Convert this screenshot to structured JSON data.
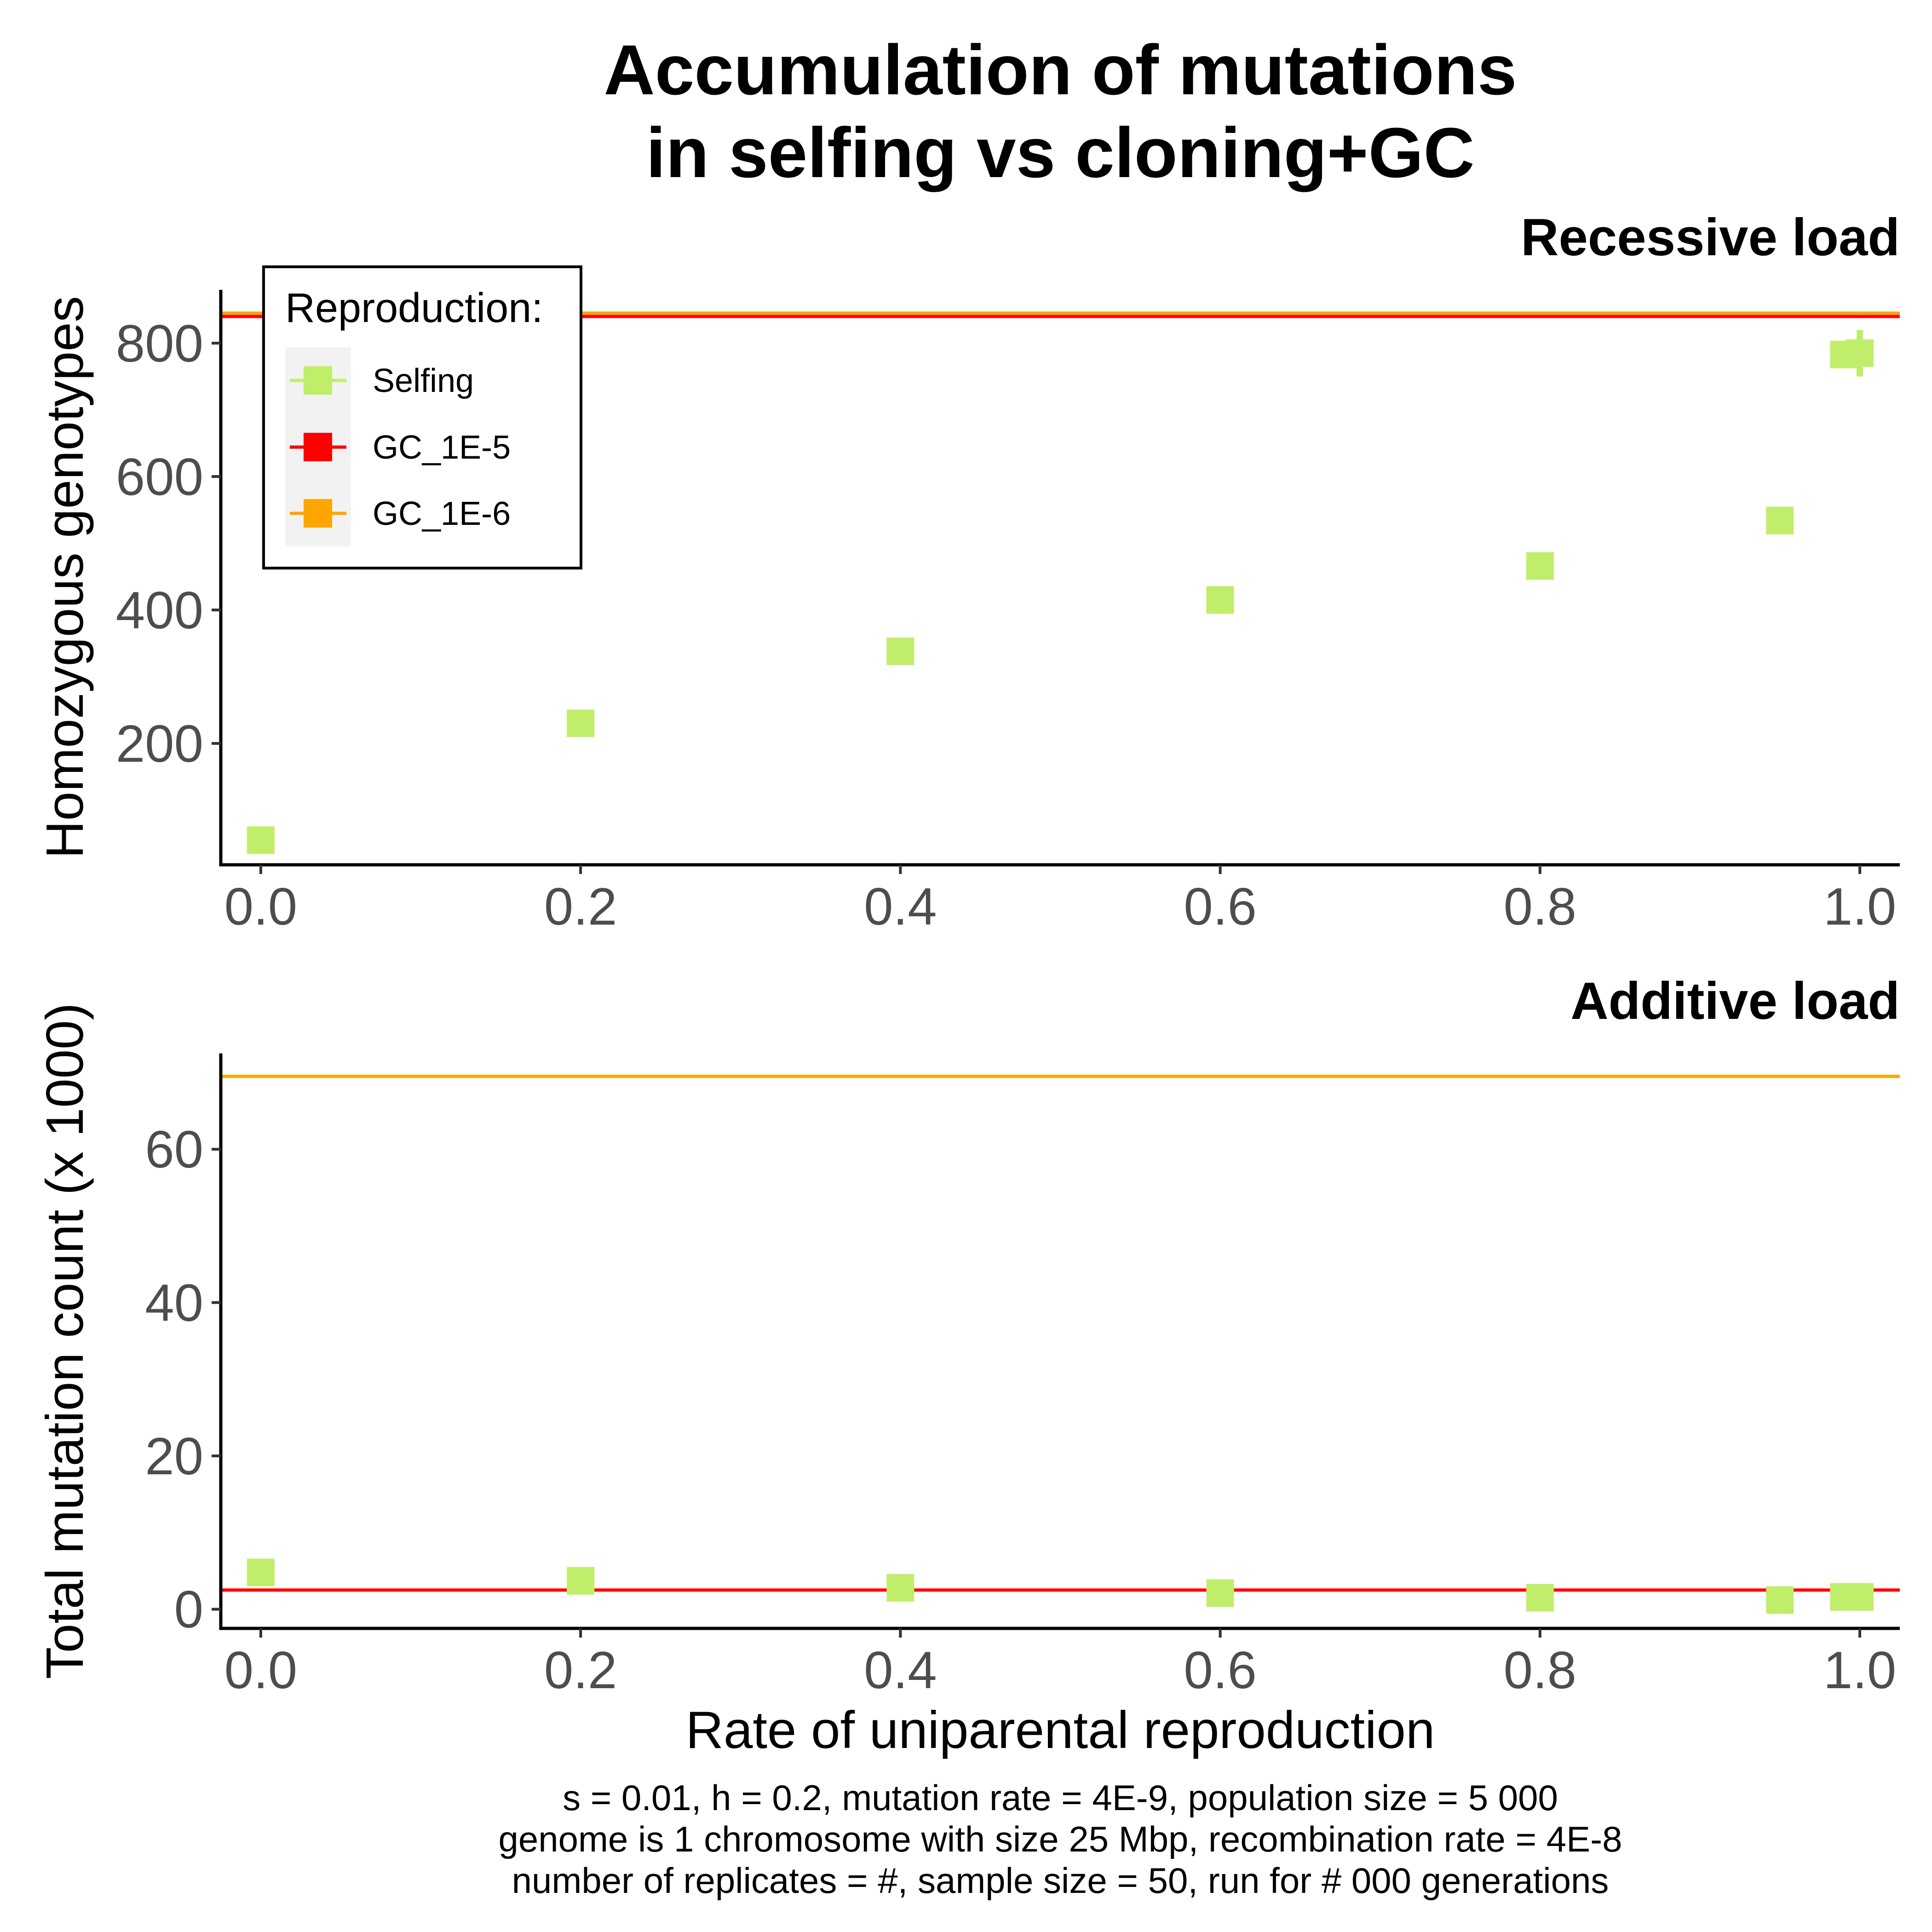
{
  "title_lines": [
    "Accumulation of mutations",
    "in selfing vs cloning+GC"
  ],
  "x_axis_label": "Rate of uniparental reproduction",
  "x_tick_labels": [
    "0.0",
    "0.2",
    "0.4",
    "0.6",
    "0.8",
    "1.0"
  ],
  "caption_lines": [
    "s = 0.01, h = 0.2, mutation rate = 4E-9, population size = 5 000",
    "genome is 1 chromosome with size 25 Mbp, recombination rate = 4E-8",
    "number of replicates = #, sample size = 50, run for # 000 generations"
  ],
  "legend": {
    "title": "Reproduction:",
    "items": [
      {
        "label": "Selfing",
        "color": "#c0ee6a"
      },
      {
        "label": "GC_1E-5",
        "color": "#ff0000"
      },
      {
        "label": "GC_1E-6",
        "color": "#ffa500"
      }
    ]
  },
  "chart_data": [
    {
      "type": "scatter",
      "title": "Recessive load",
      "ylabel": "Homozygous genotypes",
      "xlim": [
        -0.025,
        1.025
      ],
      "ylim": [
        18,
        880
      ],
      "x_ticks": [
        0,
        0.2,
        0.4,
        0.6,
        0.8,
        1.0
      ],
      "y_ticks": [
        200,
        400,
        600,
        800
      ],
      "grid": false,
      "legend_position": "top-left",
      "series": [
        {
          "name": "Selfing",
          "color": "#c0ee6a",
          "marker": "square",
          "x": [
            0.0,
            0.2,
            0.4,
            0.6,
            0.8,
            0.95,
            0.99,
            1.0
          ],
          "y": [
            55,
            230,
            338,
            415,
            466,
            534,
            783,
            785
          ],
          "error_bar": {
            "x": 1.0,
            "low": 750,
            "high": 820
          }
        },
        {
          "name": "GC_1E-5",
          "color": "#ff0000",
          "type": "hline",
          "y": 840
        },
        {
          "name": "GC_1E-6",
          "color": "#ffa500",
          "type": "hline",
          "y": 845
        }
      ]
    },
    {
      "type": "scatter",
      "title": "Additive load",
      "ylabel": "Total mutation count (x 1000)",
      "xlim": [
        -0.025,
        1.025
      ],
      "ylim": [
        -2.5,
        72.5
      ],
      "x_ticks": [
        0,
        0.2,
        0.4,
        0.6,
        0.8,
        1.0
      ],
      "y_ticks": [
        0,
        20,
        40,
        60
      ],
      "grid": false,
      "series": [
        {
          "name": "Selfing",
          "color": "#c0ee6a",
          "marker": "square",
          "x": [
            0.0,
            0.2,
            0.4,
            0.6,
            0.8,
            0.95,
            0.99,
            1.0
          ],
          "y": [
            4.8,
            3.7,
            2.8,
            2.1,
            1.5,
            1.2,
            1.6,
            1.6
          ]
        },
        {
          "name": "GC_1E-5",
          "color": "#ff0000",
          "type": "hline",
          "y": 2.5
        },
        {
          "name": "GC_1E-6",
          "color": "#ffa500",
          "type": "hline",
          "y": 69.5
        }
      ]
    }
  ]
}
